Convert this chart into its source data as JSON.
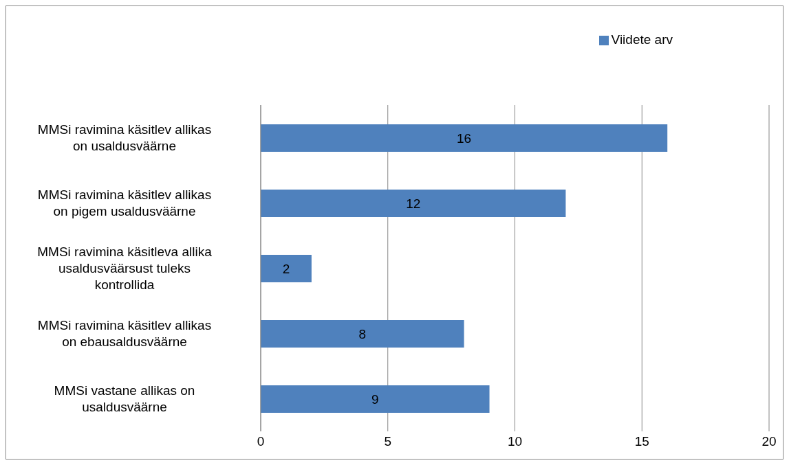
{
  "chart_data": {
    "type": "bar",
    "orientation": "horizontal",
    "categories": [
      "MMSi ravimina käsitlev allikas on usaldusväärne",
      "MMSi ravimina käsitlev allikas on pigem usaldusväärne",
      "MMSi ravimina käsitleva allika usaldusväärsust tuleks kontrollida",
      "MMSi ravimina käsitlev allikas on ebausaldusväärne",
      "MMSi vastane allikas on usaldusväärne"
    ],
    "series": [
      {
        "name": "Viidete arv",
        "color": "#4f81bd",
        "values": [
          16,
          12,
          2,
          8,
          9
        ]
      }
    ],
    "xlim": [
      0,
      20
    ],
    "xticks": [
      0,
      5,
      10,
      15,
      20
    ],
    "grid": "x",
    "legend": "top right",
    "data_labels": true
  }
}
